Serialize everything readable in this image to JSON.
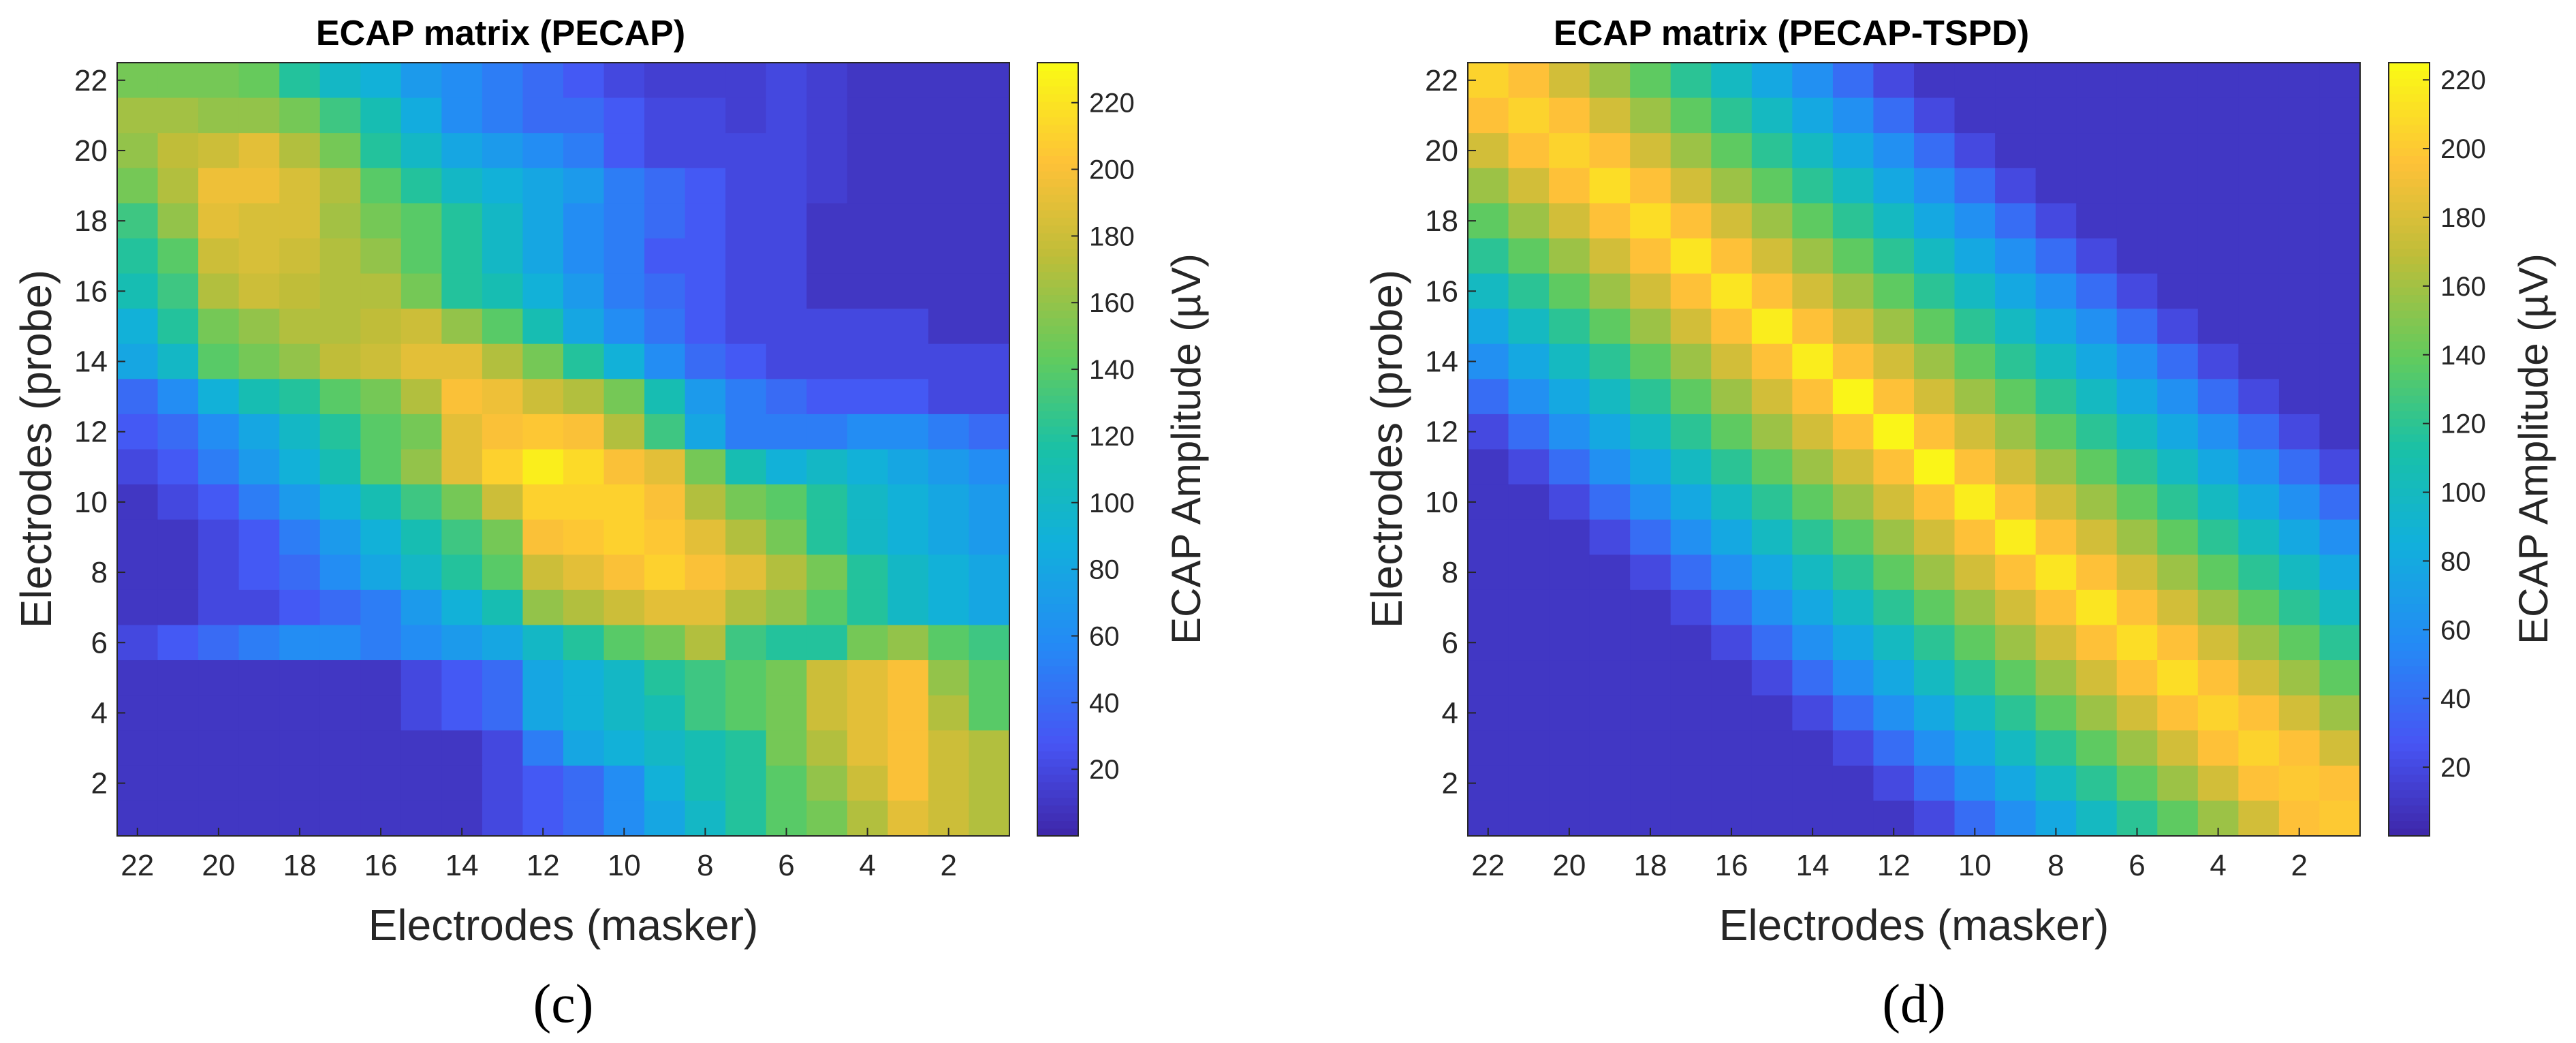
{
  "chart_data": [
    {
      "type": "heatmap",
      "panel_label": "(c)",
      "title": "ECAP matrix (PECAP)",
      "xlabel": "Electrodes (masker)",
      "ylabel": "Electrodes (probe)",
      "colorbar_label": "ECAP Amplitude (µV)",
      "colormap": "parula",
      "clim": [
        0,
        232
      ],
      "x_ticks": [
        "22",
        "20",
        "18",
        "16",
        "14",
        "12",
        "10",
        "8",
        "6",
        "4",
        "2"
      ],
      "y_ticks": [
        "2",
        "4",
        "6",
        "8",
        "10",
        "12",
        "14",
        "16",
        "18",
        "20",
        "22"
      ],
      "colorbar_ticks": [
        "20",
        "40",
        "60",
        "80",
        "100",
        "120",
        "140",
        "160",
        "180",
        "200",
        "220"
      ],
      "columns": [
        "22",
        "21",
        "20",
        "19",
        "18",
        "17",
        "16",
        "15",
        "14",
        "13",
        "12",
        "11",
        "10",
        "9",
        "8",
        "7",
        "6",
        "5",
        "4",
        "3",
        "2",
        "1"
      ],
      "rows": [
        "22",
        "21",
        "20",
        "19",
        "18",
        "17",
        "16",
        "15",
        "14",
        "13",
        "12",
        "11",
        "10",
        "9",
        "8",
        "7",
        "6",
        "5",
        "4",
        "3",
        "2",
        "1"
      ],
      "values": [
        [
          150,
          150,
          150,
          145,
          120,
          100,
          90,
          70,
          60,
          50,
          40,
          30,
          20,
          15,
          15,
          15,
          20,
          15,
          10,
          10,
          10,
          10
        ],
        [
          165,
          165,
          160,
          160,
          150,
          130,
          110,
          85,
          60,
          50,
          40,
          40,
          30,
          20,
          20,
          15,
          20,
          15,
          10,
          10,
          10,
          10
        ],
        [
          160,
          175,
          180,
          190,
          170,
          150,
          120,
          100,
          80,
          70,
          60,
          50,
          30,
          20,
          20,
          20,
          20,
          15,
          10,
          10,
          10,
          10
        ],
        [
          150,
          170,
          195,
          195,
          185,
          170,
          140,
          120,
          100,
          90,
          80,
          70,
          50,
          40,
          30,
          20,
          20,
          15,
          10,
          10,
          10,
          10
        ],
        [
          130,
          160,
          190,
          185,
          185,
          165,
          150,
          140,
          120,
          100,
          80,
          60,
          50,
          40,
          30,
          20,
          20,
          10,
          10,
          10,
          10,
          10
        ],
        [
          120,
          140,
          180,
          185,
          180,
          170,
          160,
          140,
          120,
          100,
          80,
          60,
          50,
          30,
          30,
          20,
          20,
          10,
          10,
          10,
          10,
          10
        ],
        [
          110,
          130,
          170,
          180,
          175,
          170,
          170,
          150,
          120,
          110,
          90,
          70,
          50,
          40,
          30,
          20,
          20,
          10,
          10,
          10,
          10,
          10
        ],
        [
          90,
          120,
          150,
          160,
          170,
          170,
          175,
          180,
          160,
          140,
          110,
          80,
          60,
          45,
          30,
          20,
          20,
          20,
          20,
          20,
          10,
          10
        ],
        [
          80,
          100,
          140,
          150,
          160,
          175,
          180,
          190,
          190,
          170,
          150,
          120,
          90,
          60,
          40,
          30,
          20,
          20,
          20,
          20,
          20,
          20
        ],
        [
          40,
          60,
          90,
          110,
          120,
          140,
          150,
          170,
          200,
          195,
          180,
          170,
          150,
          110,
          70,
          50,
          40,
          30,
          30,
          30,
          20,
          20
        ],
        [
          30,
          40,
          60,
          80,
          100,
          120,
          140,
          150,
          190,
          200,
          205,
          200,
          170,
          130,
          80,
          50,
          50,
          50,
          60,
          60,
          50,
          40
        ],
        [
          20,
          30,
          50,
          70,
          90,
          110,
          140,
          160,
          190,
          210,
          225,
          215,
          200,
          190,
          150,
          110,
          90,
          100,
          90,
          80,
          70,
          60
        ],
        [
          10,
          20,
          30,
          50,
          70,
          90,
          110,
          130,
          150,
          180,
          210,
          210,
          210,
          200,
          170,
          150,
          140,
          120,
          100,
          90,
          80,
          70
        ],
        [
          10,
          10,
          20,
          30,
          50,
          70,
          90,
          110,
          130,
          150,
          200,
          205,
          210,
          205,
          190,
          170,
          150,
          120,
          100,
          90,
          80,
          70
        ],
        [
          10,
          10,
          20,
          30,
          40,
          60,
          80,
          100,
          120,
          140,
          180,
          190,
          200,
          210,
          200,
          190,
          170,
          150,
          120,
          100,
          90,
          80
        ],
        [
          10,
          10,
          20,
          20,
          30,
          40,
          50,
          70,
          90,
          110,
          160,
          170,
          180,
          190,
          190,
          170,
          160,
          140,
          120,
          100,
          90,
          80
        ],
        [
          20,
          30,
          40,
          50,
          60,
          60,
          50,
          60,
          70,
          80,
          100,
          120,
          140,
          150,
          170,
          130,
          120,
          120,
          150,
          160,
          140,
          130
        ],
        [
          10,
          10,
          10,
          10,
          10,
          10,
          10,
          20,
          30,
          40,
          80,
          90,
          100,
          120,
          130,
          140,
          150,
          180,
          190,
          200,
          160,
          140
        ],
        [
          10,
          10,
          10,
          10,
          10,
          10,
          10,
          20,
          30,
          40,
          80,
          90,
          100,
          110,
          130,
          140,
          150,
          180,
          190,
          200,
          170,
          140
        ],
        [
          10,
          10,
          10,
          10,
          10,
          10,
          10,
          10,
          10,
          20,
          50,
          80,
          90,
          100,
          110,
          120,
          150,
          170,
          190,
          200,
          180,
          170
        ],
        [
          10,
          10,
          10,
          10,
          10,
          10,
          10,
          10,
          10,
          20,
          30,
          40,
          60,
          90,
          110,
          120,
          140,
          160,
          180,
          200,
          180,
          170
        ],
        [
          10,
          10,
          10,
          10,
          10,
          10,
          10,
          10,
          10,
          20,
          30,
          40,
          60,
          80,
          100,
          120,
          140,
          150,
          170,
          190,
          180,
          170
        ]
      ]
    },
    {
      "type": "heatmap",
      "panel_label": "(d)",
      "title": "ECAP matrix (PECAP-TSPD)",
      "xlabel": "Electrodes (masker)",
      "ylabel": "Electrodes (probe)",
      "colorbar_label": "ECAP Amplitude (µV)",
      "colormap": "parula",
      "clim": [
        0,
        225
      ],
      "x_ticks": [
        "22",
        "20",
        "18",
        "16",
        "14",
        "12",
        "10",
        "8",
        "6",
        "4",
        "2"
      ],
      "y_ticks": [
        "2",
        "4",
        "6",
        "8",
        "10",
        "12",
        "14",
        "16",
        "18",
        "20",
        "22"
      ],
      "colorbar_ticks": [
        "20",
        "40",
        "60",
        "80",
        "100",
        "120",
        "140",
        "160",
        "180",
        "200",
        "220"
      ],
      "columns": [
        "22",
        "21",
        "20",
        "19",
        "18",
        "17",
        "16",
        "15",
        "14",
        "13",
        "12",
        "11",
        "10",
        "9",
        "8",
        "7",
        "6",
        "5",
        "4",
        "3",
        "2",
        "1"
      ],
      "rows": [
        "22",
        "21",
        "20",
        "19",
        "18",
        "17",
        "16",
        "15",
        "14",
        "13",
        "12",
        "11",
        "10",
        "9",
        "8",
        "7",
        "6",
        "5",
        "4",
        "3",
        "2",
        "1"
      ],
      "values": [
        [
          205,
          196,
          177,
          158,
          138,
          119,
          99,
          79,
          60,
          40,
          20,
          10,
          10,
          10,
          10,
          10,
          10,
          10,
          10,
          10,
          10,
          10
        ],
        [
          196,
          205,
          196,
          177,
          158,
          138,
          119,
          99,
          79,
          60,
          40,
          20,
          10,
          10,
          10,
          10,
          10,
          10,
          10,
          10,
          10,
          10
        ],
        [
          177,
          196,
          205,
          196,
          177,
          158,
          138,
          119,
          99,
          79,
          60,
          40,
          20,
          10,
          10,
          10,
          10,
          10,
          10,
          10,
          10,
          10
        ],
        [
          158,
          177,
          196,
          210,
          196,
          177,
          158,
          138,
          119,
          99,
          79,
          60,
          40,
          20,
          10,
          10,
          10,
          10,
          10,
          10,
          10,
          10
        ],
        [
          138,
          158,
          177,
          196,
          210,
          196,
          177,
          158,
          138,
          119,
          99,
          79,
          60,
          40,
          20,
          10,
          10,
          10,
          10,
          10,
          10,
          10
        ],
        [
          119,
          138,
          158,
          177,
          196,
          214,
          196,
          177,
          158,
          138,
          119,
          99,
          79,
          60,
          40,
          20,
          10,
          10,
          10,
          10,
          10,
          10
        ],
        [
          99,
          119,
          138,
          158,
          177,
          196,
          214,
          196,
          177,
          158,
          138,
          119,
          99,
          79,
          60,
          40,
          20,
          10,
          10,
          10,
          10,
          10
        ],
        [
          79,
          99,
          119,
          138,
          158,
          177,
          196,
          218,
          196,
          177,
          158,
          138,
          119,
          99,
          79,
          60,
          40,
          20,
          10,
          10,
          10,
          10
        ],
        [
          60,
          79,
          99,
          119,
          138,
          158,
          177,
          196,
          218,
          196,
          177,
          158,
          138,
          119,
          99,
          79,
          60,
          40,
          20,
          10,
          10,
          10
        ],
        [
          40,
          60,
          79,
          99,
          119,
          138,
          158,
          177,
          196,
          222,
          196,
          177,
          158,
          138,
          119,
          99,
          79,
          60,
          40,
          20,
          10,
          10
        ],
        [
          20,
          40,
          60,
          79,
          99,
          119,
          138,
          158,
          177,
          196,
          222,
          196,
          177,
          158,
          138,
          119,
          99,
          79,
          60,
          40,
          20,
          10
        ],
        [
          10,
          20,
          40,
          60,
          79,
          99,
          119,
          138,
          158,
          177,
          196,
          222,
          196,
          177,
          158,
          138,
          119,
          99,
          79,
          60,
          40,
          20
        ],
        [
          10,
          10,
          20,
          40,
          60,
          79,
          99,
          119,
          138,
          158,
          177,
          196,
          218,
          196,
          177,
          158,
          138,
          119,
          99,
          79,
          60,
          40
        ],
        [
          10,
          10,
          10,
          20,
          40,
          60,
          79,
          99,
          119,
          138,
          158,
          177,
          196,
          218,
          196,
          177,
          158,
          138,
          119,
          99,
          79,
          60
        ],
        [
          10,
          10,
          10,
          10,
          20,
          40,
          60,
          79,
          99,
          119,
          138,
          158,
          177,
          196,
          214,
          196,
          177,
          158,
          138,
          119,
          99,
          79
        ],
        [
          10,
          10,
          10,
          10,
          10,
          20,
          40,
          60,
          79,
          99,
          119,
          138,
          158,
          177,
          196,
          214,
          196,
          177,
          158,
          138,
          119,
          99
        ],
        [
          10,
          10,
          10,
          10,
          10,
          10,
          20,
          40,
          60,
          79,
          99,
          119,
          138,
          158,
          177,
          196,
          210,
          196,
          177,
          158,
          138,
          119
        ],
        [
          10,
          10,
          10,
          10,
          10,
          10,
          10,
          20,
          40,
          60,
          79,
          99,
          119,
          138,
          158,
          177,
          196,
          210,
          196,
          177,
          158,
          138
        ],
        [
          10,
          10,
          10,
          10,
          10,
          10,
          10,
          10,
          20,
          40,
          60,
          79,
          99,
          119,
          138,
          158,
          177,
          196,
          205,
          196,
          177,
          158
        ],
        [
          10,
          10,
          10,
          10,
          10,
          10,
          10,
          10,
          10,
          20,
          40,
          60,
          79,
          99,
          119,
          138,
          158,
          177,
          196,
          205,
          196,
          177
        ],
        [
          10,
          10,
          10,
          10,
          10,
          10,
          10,
          10,
          10,
          10,
          20,
          40,
          60,
          79,
          99,
          119,
          138,
          158,
          177,
          196,
          200,
          196
        ],
        [
          10,
          10,
          10,
          10,
          10,
          10,
          10,
          10,
          10,
          10,
          10,
          20,
          40,
          60,
          79,
          99,
          119,
          138,
          158,
          177,
          196,
          200
        ]
      ]
    }
  ]
}
